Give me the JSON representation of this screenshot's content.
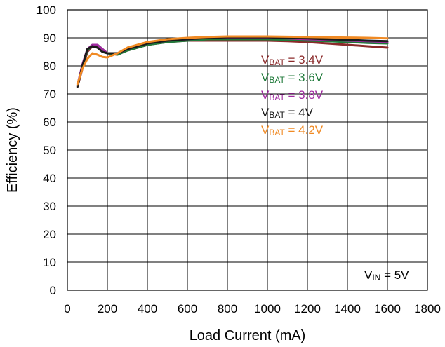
{
  "chart_data": {
    "type": "line",
    "title": "",
    "xlabel": "Load Current (mA)",
    "ylabel": "Efficiency (%)",
    "xlim": [
      0,
      1800
    ],
    "ylim": [
      0,
      100
    ],
    "xticks": [
      0,
      200,
      400,
      600,
      800,
      1000,
      1200,
      1400,
      1600,
      1800
    ],
    "yticks": [
      0,
      10,
      20,
      30,
      40,
      50,
      60,
      70,
      80,
      90,
      100
    ],
    "grid": true,
    "legend_position": "upper-middle-right",
    "annotation": {
      "main": "V",
      "sub": "IN",
      "suffix": " = 5V"
    },
    "series": [
      {
        "name": "VBAT = 3.4V",
        "label_main": "V",
        "label_sub": "BAT",
        "label_suffix": " = 3.4V",
        "color": "#8b2a2a",
        "x": [
          50,
          75,
          100,
          125,
          150,
          175,
          200,
          250,
          300,
          400,
          500,
          600,
          700,
          800,
          900,
          1000,
          1100,
          1200,
          1300,
          1400,
          1500,
          1600
        ],
        "y": [
          72.5,
          79,
          85,
          87,
          87,
          86,
          84.5,
          84,
          85.5,
          87.5,
          88.5,
          89,
          89,
          89,
          89,
          89,
          88.8,
          88.5,
          88,
          87.5,
          87,
          86.5
        ]
      },
      {
        "name": "VBAT = 3.6V",
        "label_main": "V",
        "label_sub": "BAT",
        "label_suffix": " = 3.6V",
        "color": "#1f7a3a",
        "x": [
          50,
          75,
          100,
          125,
          150,
          175,
          200,
          250,
          300,
          400,
          500,
          600,
          700,
          800,
          900,
          1000,
          1100,
          1200,
          1300,
          1400,
          1500,
          1600
        ],
        "y": [
          73,
          80,
          85.5,
          87.5,
          87.5,
          86,
          84.5,
          84,
          85.5,
          87.5,
          88.5,
          89,
          89.5,
          89.5,
          89.5,
          89.5,
          89.3,
          89,
          88.8,
          88.5,
          88.2,
          88
        ]
      },
      {
        "name": "VBAT = 3.8V",
        "label_main": "V",
        "label_sub": "BAT",
        "label_suffix": " = 3.8V",
        "color": "#a12aa1",
        "x": [
          50,
          75,
          100,
          125,
          150,
          175,
          200,
          250,
          300,
          400,
          500,
          600,
          700,
          800,
          900,
          1000,
          1100,
          1200,
          1300,
          1400,
          1500,
          1600
        ],
        "y": [
          73,
          80.5,
          86,
          87.5,
          87.5,
          86,
          84.5,
          84.5,
          86,
          88,
          89,
          89.5,
          90,
          90,
          90,
          90,
          89.8,
          89.5,
          89.3,
          89,
          88.8,
          88.5
        ]
      },
      {
        "name": "VBAT = 4V",
        "label_main": "V",
        "label_sub": "BAT",
        "label_suffix": " = 4V",
        "color": "#1a1a1a",
        "x": [
          50,
          75,
          100,
          125,
          150,
          175,
          200,
          250,
          300,
          400,
          500,
          600,
          700,
          800,
          900,
          1000,
          1100,
          1200,
          1300,
          1400,
          1500,
          1600
        ],
        "y": [
          72.5,
          80,
          86,
          87,
          86.5,
          85,
          84.5,
          84.5,
          86,
          88,
          89,
          89.5,
          90,
          90.2,
          90.2,
          90.2,
          90,
          89.8,
          89.5,
          89.3,
          89,
          88.8
        ]
      },
      {
        "name": "VBAT = 4.2V",
        "label_main": "V",
        "label_sub": "BAT",
        "label_suffix": " = 4.2V",
        "color": "#f08a24",
        "x": [
          50,
          75,
          100,
          125,
          150,
          175,
          200,
          250,
          300,
          400,
          500,
          600,
          700,
          800,
          900,
          1000,
          1100,
          1200,
          1300,
          1400,
          1500,
          1600
        ],
        "y": [
          73.5,
          79,
          82.5,
          84.5,
          84,
          83.2,
          83,
          84.5,
          86.5,
          88.5,
          89.5,
          90,
          90.3,
          90.5,
          90.5,
          90.5,
          90.4,
          90.3,
          90.2,
          90.1,
          90,
          89.8
        ]
      }
    ]
  }
}
